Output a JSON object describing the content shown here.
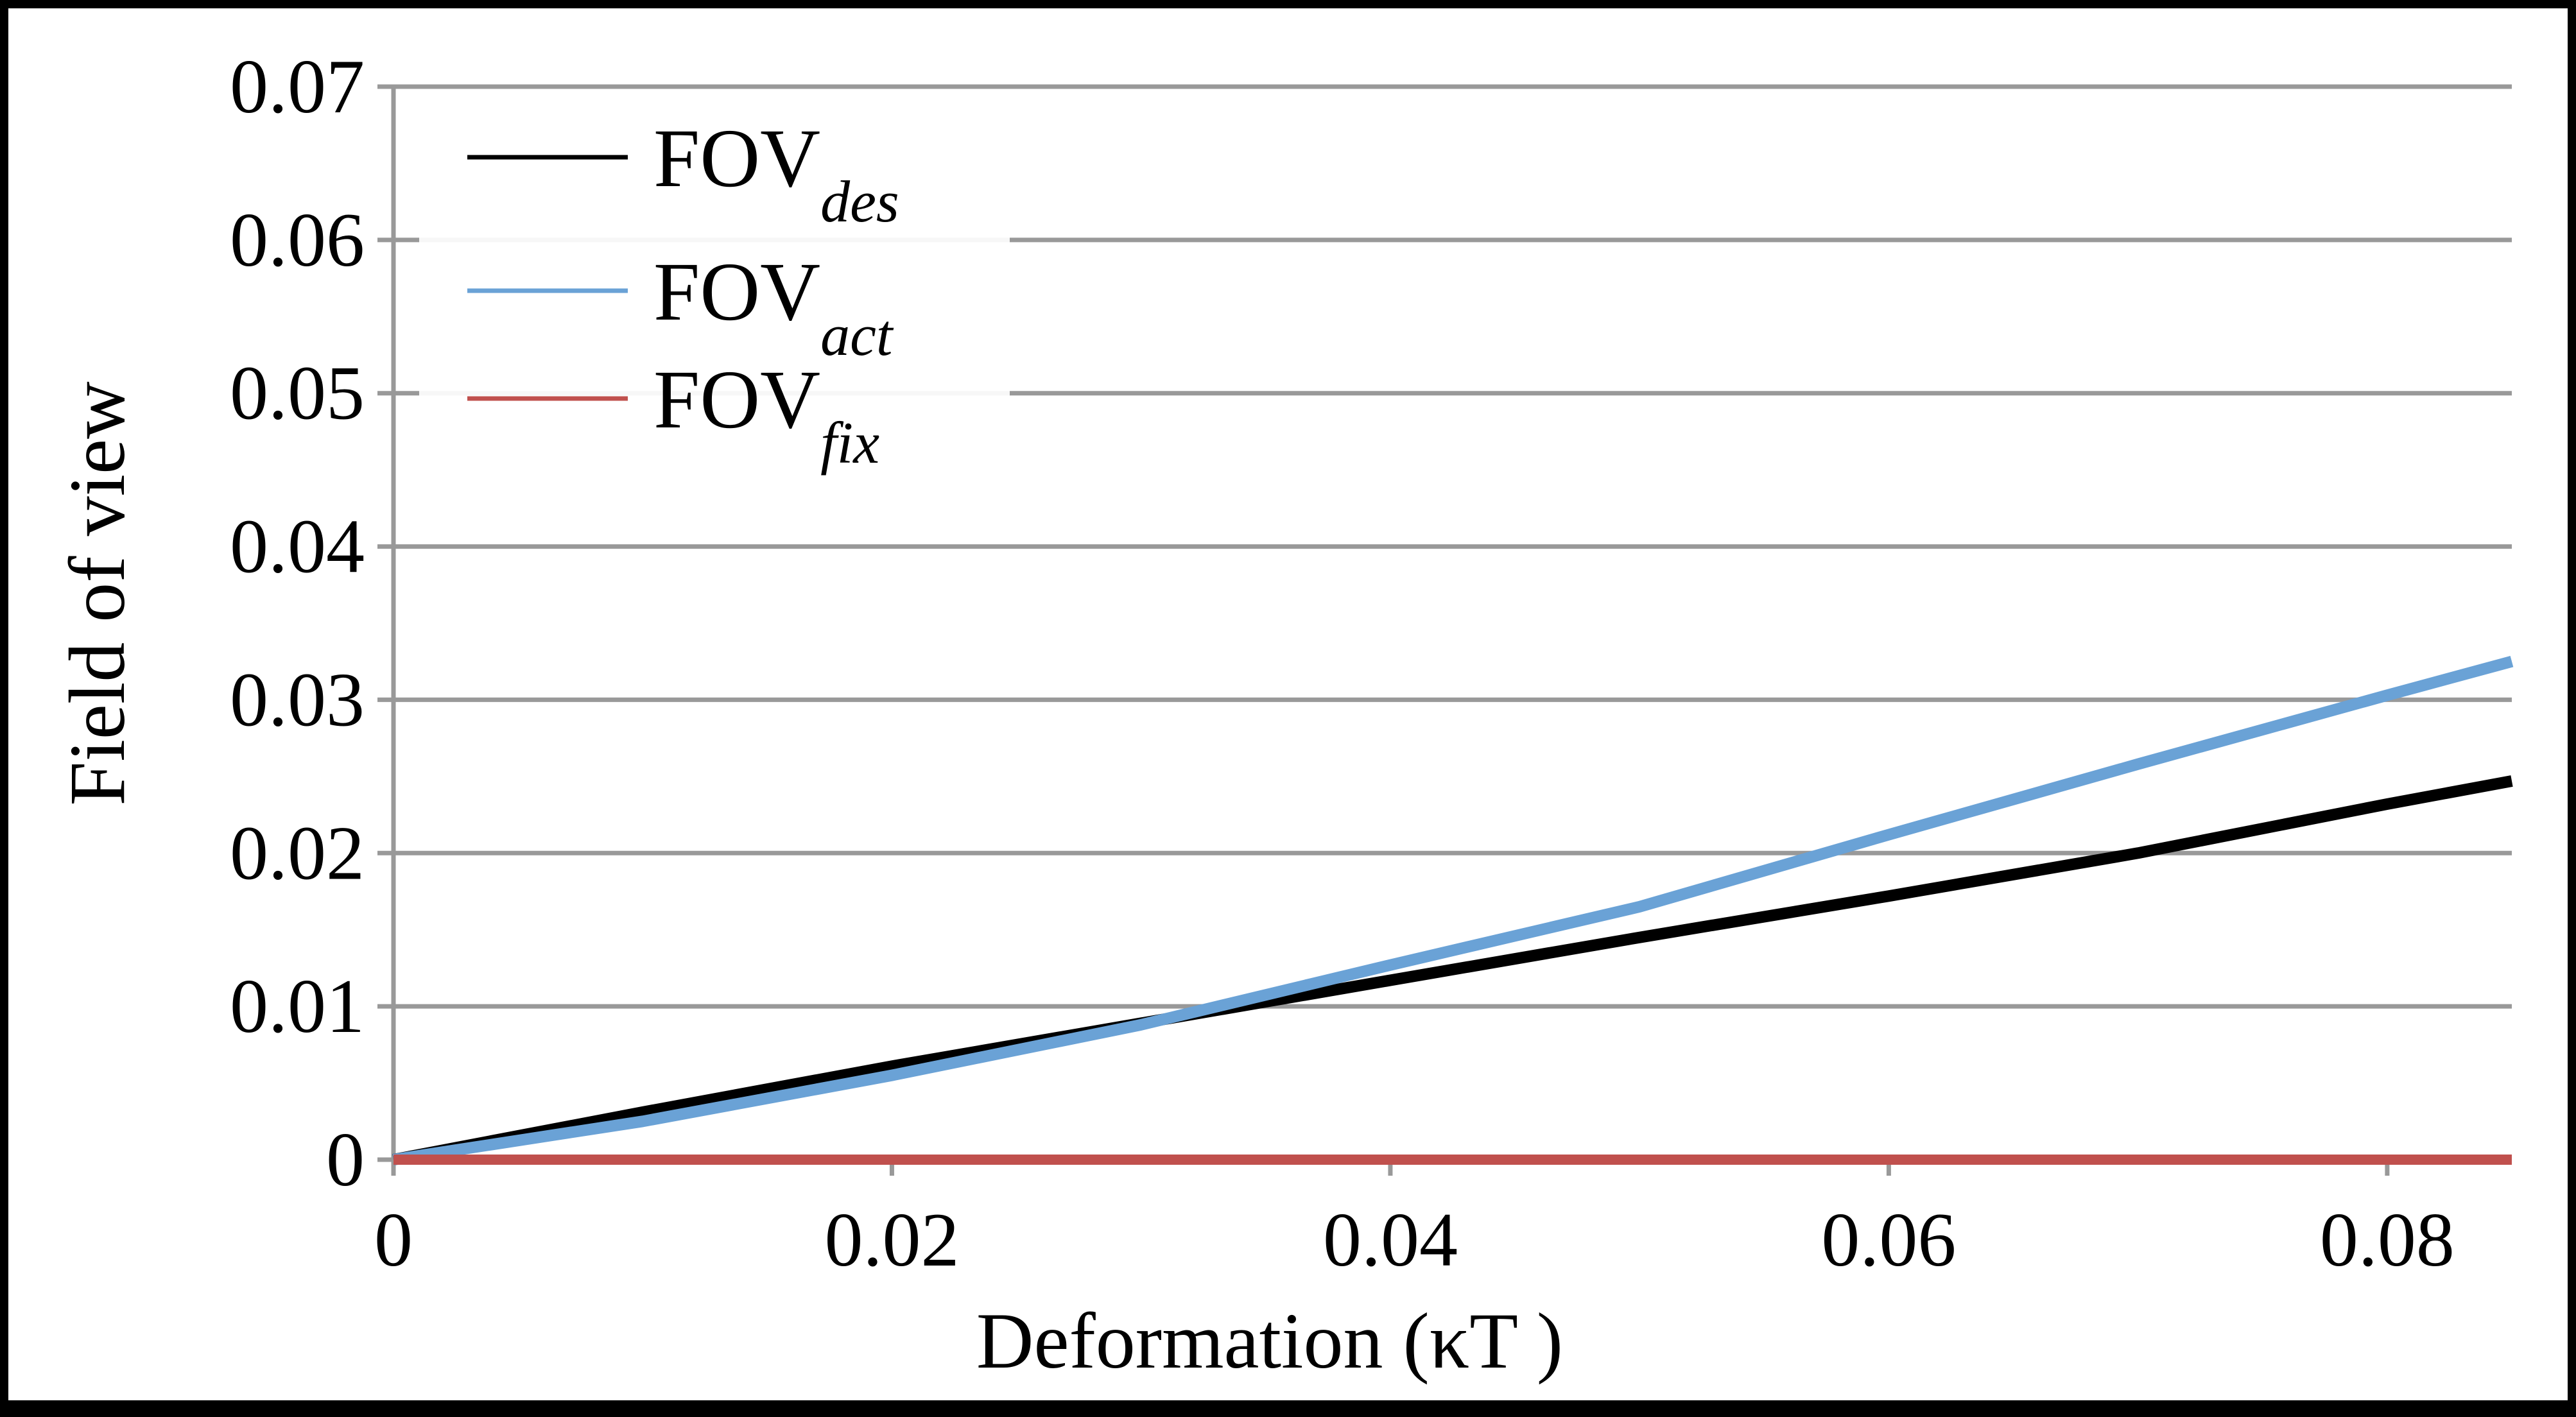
{
  "chart_data": {
    "type": "line",
    "xlabel": "Deformation (κT )",
    "ylabel": "Field of view",
    "xlim": [
      0,
      0.085
    ],
    "ylim": [
      0,
      0.07
    ],
    "x_ticks": [
      "0",
      "0.02",
      "0.04",
      "0.06",
      "0.08"
    ],
    "y_ticks": [
      "0",
      "0.01",
      "0.02",
      "0.03",
      "0.04",
      "0.05",
      "0.06",
      "0.07"
    ],
    "grid": "horizontal",
    "legend_position": "top-left",
    "series": [
      {
        "name": "FOV",
        "name_subscript": "des",
        "color": "#000000",
        "x": [
          0,
          0.01,
          0.02,
          0.03,
          0.04,
          0.05,
          0.06,
          0.07,
          0.08,
          0.085
        ],
        "y": [
          0,
          0.0031,
          0.0061,
          0.0089,
          0.0117,
          0.0145,
          0.0172,
          0.02,
          0.0232,
          0.0247
        ]
      },
      {
        "name": "FOV",
        "name_subscript": "act",
        "color": "#6aa2d6",
        "x": [
          0,
          0.01,
          0.02,
          0.03,
          0.04,
          0.05,
          0.06,
          0.07,
          0.08,
          0.085
        ],
        "y": [
          0,
          0.0025,
          0.0055,
          0.0088,
          0.0127,
          0.0165,
          0.0212,
          0.0258,
          0.0303,
          0.0325
        ]
      },
      {
        "name": "FOV",
        "name_subscript": "fix",
        "color": "#c0504d",
        "x": [
          0,
          0.085
        ],
        "y": [
          0,
          0
        ]
      }
    ]
  }
}
